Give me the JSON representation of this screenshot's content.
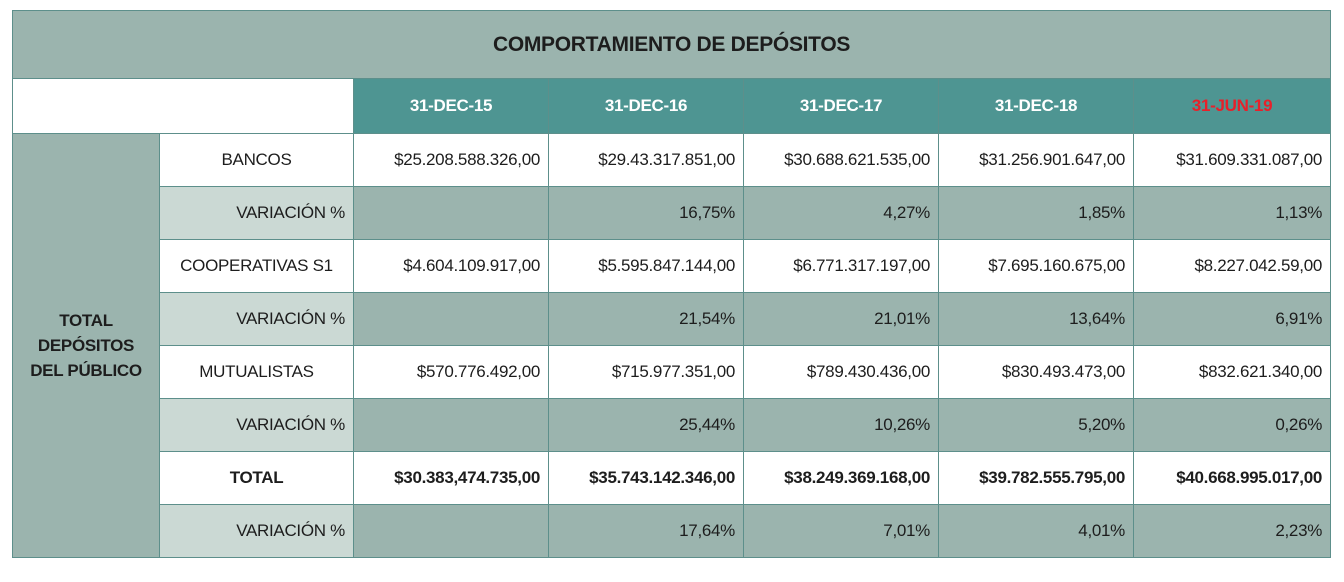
{
  "title": "COMPORTAMIENTO DE DEPÓSITOS",
  "columns": [
    {
      "label": "31-DEC-15",
      "color": "#ffffff"
    },
    {
      "label": "31-DEC-16",
      "color": "#ffffff"
    },
    {
      "label": "31-DEC-17",
      "color": "#ffffff"
    },
    {
      "label": "31-DEC-18",
      "color": "#ffffff"
    },
    {
      "label": "31-JUN-19",
      "color": "#e8202a"
    }
  ],
  "group_label": "TOTAL DEPÓSITOS DEL PÚBLICO",
  "rows": [
    {
      "label": "BANCOS",
      "values": [
        "$25.208.588.326,00",
        "$29.43.317.851,00",
        "$30.688.621.535,00",
        "$31.256.901.647,00",
        "$31.609.331.087,00"
      ]
    },
    {
      "label": "VARIACIÓN %",
      "values": [
        "",
        "16,75%",
        "4,27%",
        "1,85%",
        "1,13%"
      ]
    },
    {
      "label": "COOPERATIVAS S1",
      "values": [
        "$4.604.109.917,00",
        "$5.595.847.144,00",
        "$6.771.317.197,00",
        "$7.695.160.675,00",
        "$8.227.042.59,00"
      ]
    },
    {
      "label": "VARIACIÓN %",
      "values": [
        "",
        "21,54%",
        "21,01%",
        "13,64%",
        "6,91%"
      ]
    },
    {
      "label": "MUTUALISTAS",
      "values": [
        "$570.776.492,00",
        "$715.977.351,00",
        "$789.430.436,00",
        "$830.493.473,00",
        "$832.621.340,00"
      ]
    },
    {
      "label": "VARIACIÓN %",
      "values": [
        "",
        "25,44%",
        "10,26%",
        "5,20%",
        "0,26%"
      ]
    },
    {
      "label": "TOTAL",
      "values": [
        "$30.383,474.735,00",
        "$35.743.142.346,00",
        "$38.249.369.168,00",
        "$39.782.555.795,00",
        "$40.668.995.017,00"
      ]
    },
    {
      "label": "VARIACIÓN %",
      "values": [
        "",
        "17,64%",
        "7,01%",
        "4,01%",
        "2,23%"
      ]
    }
  ]
}
